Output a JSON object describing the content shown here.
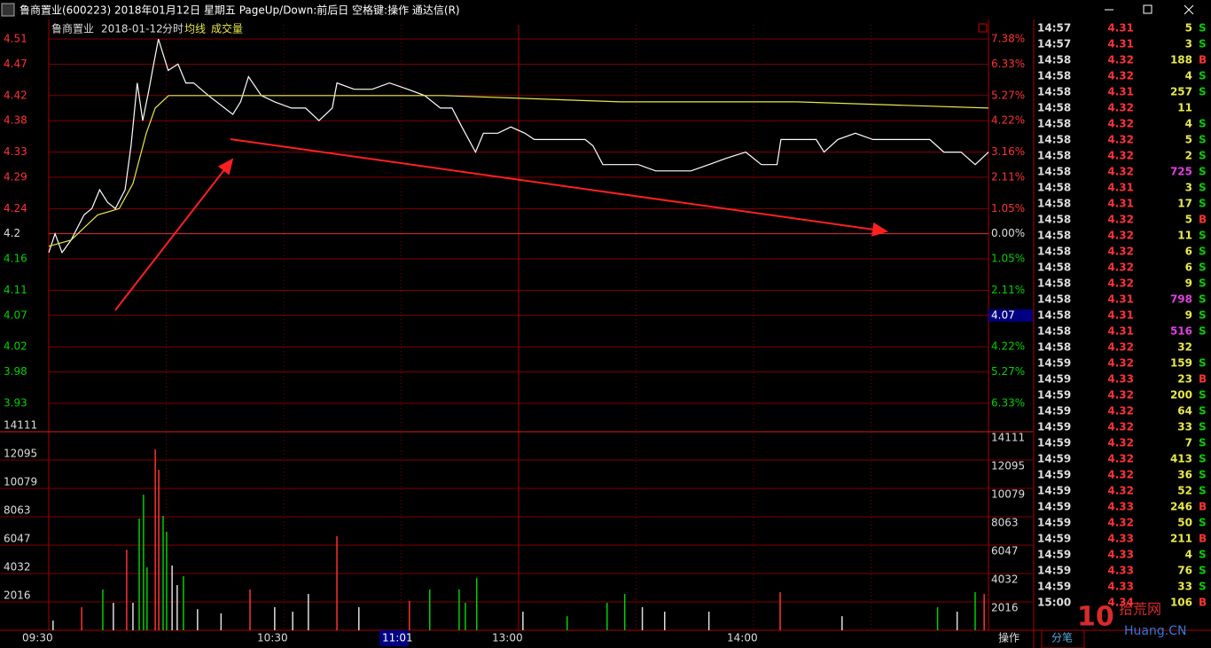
{
  "title_bar": "鲁商置业(600223) 2018年01月12日 星期五 PageUp/Down:前后日 空格键:操作 通达信(R)",
  "chart_data": {
    "type": "line",
    "header": {
      "name": "鲁商置业",
      "date": "2018-01-12",
      "mode": "分时",
      "avg_label": "均线",
      "vol_label": "成交量"
    },
    "xlim": [
      0,
      240
    ],
    "xticks": [
      {
        "value": 0,
        "label": "09:30"
      },
      {
        "value": 60,
        "label": "10:30"
      },
      {
        "value": 120,
        "label": "13:00"
      },
      {
        "value": 180,
        "label": "14:00"
      }
    ],
    "ylim": [
      3.93,
      4.51
    ],
    "yticks": [
      3.93,
      3.98,
      4.02,
      4.07,
      4.11,
      4.16,
      4.2,
      4.24,
      4.29,
      4.33,
      4.38,
      4.42,
      4.47,
      4.51
    ],
    "y_pct_labels": [
      "6.33%",
      "5.27%",
      "4.22%",
      "3.16%",
      "2.11%",
      "1.05%",
      "0.00%",
      "1.05%",
      "2.11%",
      "3.16%",
      "4.22%",
      "5.27%",
      "6.33%",
      "7.38%"
    ],
    "base_price": 4.2,
    "series": [
      {
        "color": "#ffffff",
        "x": [
          0,
          1.6,
          3.4,
          5.7,
          9,
          11,
          13,
          15,
          17,
          19.5,
          21,
          22.6,
          24,
          25.6,
          26.5,
          28,
          30.5,
          33,
          35,
          37,
          40.8,
          47,
          49,
          51,
          54.3,
          57.7,
          62,
          65.6,
          69,
          72.4,
          73.6,
          78,
          82.6,
          87,
          91.7,
          96,
          100,
          103,
          105.5,
          109,
          111,
          114.7,
          118,
          121.6,
          124,
          128,
          132,
          137,
          139,
          141.5,
          146,
          150.6,
          155,
          164,
          168.6,
          173,
          178,
          182,
          186,
          187,
          191.3,
          196,
          198,
          201.5,
          206,
          210.5,
          214,
          218.5,
          225,
          228.6,
          233,
          236.6,
          240
        ],
        "values": [
          4.17,
          4.2,
          4.17,
          4.19,
          4.23,
          4.24,
          4.27,
          4.25,
          4.24,
          4.27,
          4.34,
          4.44,
          4.38,
          4.43,
          4.46,
          4.51,
          4.46,
          4.47,
          4.44,
          4.44,
          4.42,
          4.39,
          4.41,
          4.45,
          4.42,
          4.41,
          4.4,
          4.4,
          4.38,
          4.4,
          4.44,
          4.43,
          4.43,
          4.44,
          4.43,
          4.42,
          4.4,
          4.4,
          4.37,
          4.33,
          4.36,
          4.36,
          4.37,
          4.36,
          4.35,
          4.35,
          4.35,
          4.35,
          4.34,
          4.31,
          4.31,
          4.31,
          4.3,
          4.3,
          4.31,
          4.32,
          4.33,
          4.31,
          4.31,
          4.35,
          4.35,
          4.35,
          4.33,
          4.35,
          4.36,
          4.35,
          4.35,
          4.35,
          4.35,
          4.33,
          4.33,
          4.31,
          4.33
        ]
      },
      {
        "color": "#e8e84a",
        "x": [
          0,
          5.7,
          12.5,
          18,
          21.5,
          24.9,
          27.2,
          30.6,
          37.4,
          55.5,
          100.8,
          146,
          191,
          240
        ],
        "values": [
          4.18,
          4.19,
          4.23,
          4.24,
          4.28,
          4.36,
          4.4,
          4.42,
          4.42,
          4.42,
          4.42,
          4.41,
          4.41,
          4.4
        ]
      }
    ],
    "volume": {
      "ylim": [
        0,
        14111
      ],
      "yticks": [
        2016,
        4032,
        6047,
        8063,
        10079,
        12095,
        14111
      ],
      "x": [
        1.1,
        8.4,
        13.8,
        16.5,
        19.9,
        21.5,
        23.1,
        24.2,
        25.1,
        27.2,
        28.1,
        29.2,
        30.1,
        31.5,
        32.8,
        34.4,
        38,
        44,
        51.4,
        57.7,
        62.3,
        66.3,
        73.6,
        79.2,
        92.1,
        97.3,
        104.8,
        106.4,
        109.3,
        121.1,
        132.4,
        142.6,
        147.1,
        151.6,
        157.3,
        168.6,
        186.8,
        202.6,
        227,
        232,
        236.6,
        238.9
      ],
      "values": [
        690,
        1640,
        2900,
        1950,
        5730,
        1950,
        7940,
        9640,
        4470,
        12850,
        11400,
        8130,
        7000,
        4600,
        3210,
        3840,
        1500,
        1200,
        2900,
        1640,
        1320,
        2580,
        6680,
        1640,
        2080,
        2900,
        2900,
        1950,
        3720,
        1320,
        1000,
        1950,
        2580,
        1640,
        1320,
        1320,
        2710,
        1000,
        1640,
        1320,
        2710,
        2580
      ],
      "colors": [
        "#dddddd",
        "#ff3232",
        "#00d000",
        "#dddddd",
        "#ff3232",
        "#dddddd",
        "#00d000",
        "#00d000",
        "#00d000",
        "#ff3232",
        "#ff3232",
        "#00d000",
        "#00d000",
        "#dddddd",
        "#dddddd",
        "#00d000",
        "#dddddd",
        "#dddddd",
        "#ff3232",
        "#dddddd",
        "#dddddd",
        "#dddddd",
        "#ff3232",
        "#dddddd",
        "#ff3232",
        "#00d000",
        "#00d000",
        "#00d000",
        "#00d000",
        "#dddddd",
        "#00d000",
        "#00d000",
        "#00d000",
        "#dddddd",
        "#dddddd",
        "#dddddd",
        "#ff3232",
        "#dddddd",
        "#00d000",
        "#dddddd",
        "#00d000",
        "#ff3232"
      ]
    },
    "cursor": {
      "price": 4.07,
      "time": "11:01"
    }
  },
  "tick_list": {
    "rows": [
      [
        "14:57",
        4.31,
        5,
        "S"
      ],
      [
        "14:57",
        4.31,
        3,
        "S"
      ],
      [
        "14:58",
        4.32,
        188,
        "B"
      ],
      [
        "14:58",
        4.32,
        4,
        "S"
      ],
      [
        "14:58",
        4.31,
        257,
        "S"
      ],
      [
        "14:58",
        4.32,
        11
      ],
      [
        "14:58",
        4.32,
        4,
        "S"
      ],
      [
        "14:58",
        4.32,
        5,
        "S"
      ],
      [
        "14:58",
        4.32,
        2,
        "S"
      ],
      [
        "14:58",
        4.32,
        725,
        "S"
      ],
      [
        "14:58",
        4.31,
        3,
        "S"
      ],
      [
        "14:58",
        4.31,
        17,
        "S"
      ],
      [
        "14:58",
        4.32,
        5,
        "B"
      ],
      [
        "14:58",
        4.32,
        11,
        "S"
      ],
      [
        "14:58",
        4.32,
        6,
        "S"
      ],
      [
        "14:58",
        4.32,
        6,
        "S"
      ],
      [
        "14:58",
        4.32,
        9,
        "S"
      ],
      [
        "14:58",
        4.31,
        798,
        "S"
      ],
      [
        "14:58",
        4.31,
        9,
        "S"
      ],
      [
        "14:58",
        4.31,
        516,
        "S"
      ],
      [
        "14:58",
        4.32,
        32
      ],
      [
        "14:59",
        4.32,
        159,
        "S"
      ],
      [
        "14:59",
        4.33,
        23,
        "B"
      ],
      [
        "14:59",
        4.32,
        200,
        "S"
      ],
      [
        "14:59",
        4.32,
        64,
        "S"
      ],
      [
        "14:59",
        4.32,
        33,
        "S"
      ],
      [
        "14:59",
        4.32,
        7,
        "S"
      ],
      [
        "14:59",
        4.32,
        413,
        "S"
      ],
      [
        "14:59",
        4.32,
        36,
        "S"
      ],
      [
        "14:59",
        4.32,
        52,
        "S"
      ],
      [
        "14:59",
        4.33,
        246,
        "B"
      ],
      [
        "14:59",
        4.32,
        50,
        "S"
      ],
      [
        "14:59",
        4.33,
        211,
        "B"
      ],
      [
        "14:59",
        4.33,
        4,
        "S"
      ],
      [
        "14:59",
        4.33,
        76,
        "S"
      ],
      [
        "14:59",
        4.33,
        33,
        "S"
      ],
      [
        "15:00",
        4.34,
        106,
        "B"
      ]
    ]
  },
  "tabs": [
    "操作",
    "分笔"
  ],
  "watermark": {
    "logo": "10",
    "site": "拾荒网",
    "url": "Huang.CN"
  }
}
